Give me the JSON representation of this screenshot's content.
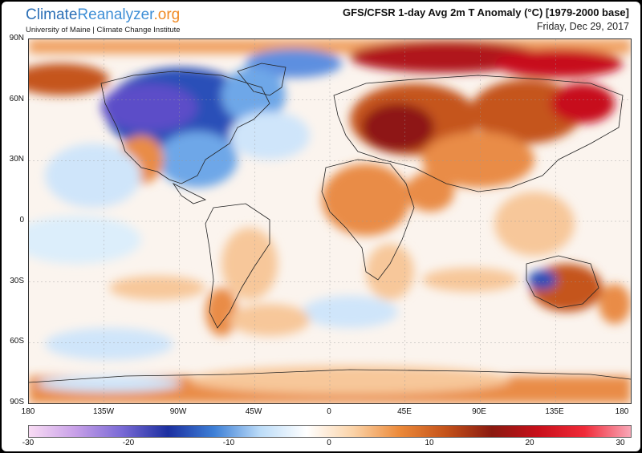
{
  "brand": {
    "logo_part1": "Climate",
    "logo_part2": "Reanalyzer",
    "logo_part3": ".org",
    "subtitle": "University of Maine | Climate Change Institute"
  },
  "header": {
    "title": "GFS/CFSR 1-day Avg 2m T Anomaly (°C) [1979-2000 base]",
    "date": "Friday, Dec 29, 2017"
  },
  "axes": {
    "lat_labels": [
      "90N",
      "60N",
      "30N",
      "0",
      "30S",
      "60S",
      "90S"
    ],
    "lon_labels": [
      "180",
      "135W",
      "90W",
      "45W",
      "0",
      "45E",
      "90E",
      "135E",
      "180"
    ]
  },
  "colorbar": {
    "labels": [
      "-30",
      "-20",
      "-10",
      "0",
      "10",
      "20",
      "30"
    ],
    "colors": [
      "#f9dcf4",
      "#c8a0e8",
      "#7a6ad6",
      "#1c2fa0",
      "#3d7fd6",
      "#bcdcf8",
      "#ffffff",
      "#fbd3a8",
      "#ec8a3a",
      "#c4521a",
      "#8a1a10",
      "#c80f1a",
      "#f02a38",
      "#f8a8b8"
    ]
  },
  "anomaly_colors": {
    "warm_light": "#f7c79a",
    "warm": "#e98c47",
    "warm_strong": "#c5541b",
    "hot": "#8e1712",
    "hotter": "#c7101b",
    "cool_light": "#cfe5fa",
    "cool": "#6ea7e8",
    "cold": "#2c4fb8",
    "very_cold": "#5b4ec8",
    "neutral": "#fbf4ee"
  }
}
